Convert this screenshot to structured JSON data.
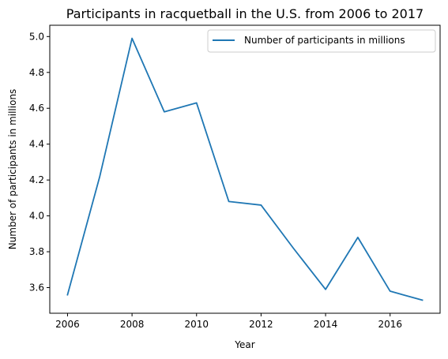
{
  "chart_data": {
    "type": "line",
    "title": "Participants in racquetball in the U.S. from 2006 to 2017",
    "xlabel": "Year",
    "ylabel": "Number of participants in millions",
    "x": [
      2006,
      2007,
      2008,
      2009,
      2010,
      2011,
      2012,
      2013,
      2014,
      2015,
      2016,
      2017
    ],
    "series": [
      {
        "name": "Number of participants in millions",
        "values": [
          3.56,
          4.22,
          4.99,
          4.58,
          4.63,
          4.08,
          4.06,
          3.82,
          3.59,
          3.88,
          3.58,
          3.53
        ],
        "color": "#1f77b4"
      }
    ],
    "xlim": [
      2005.45,
      2017.55
    ],
    "ylim": [
      3.457,
      5.063
    ],
    "xticks": [
      "2006",
      "2008",
      "2010",
      "2012",
      "2014",
      "2016"
    ],
    "yticks": [
      "3.6",
      "3.8",
      "4.0",
      "4.2",
      "4.4",
      "4.6",
      "4.8",
      "5.0"
    ],
    "grid": false,
    "legend_position": "top-right"
  }
}
